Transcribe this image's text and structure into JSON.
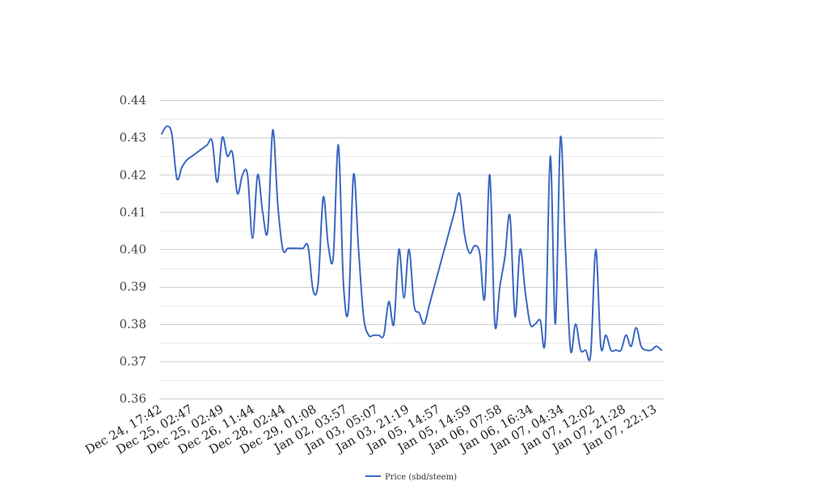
{
  "chart_data": {
    "type": "line",
    "title": "",
    "xlabel": "",
    "ylabel": "",
    "ylim": [
      0.36,
      0.44
    ],
    "y_ticks": [
      "0.36",
      "0.37",
      "0.38",
      "0.39",
      "0.40",
      "0.41",
      "0.42",
      "0.43",
      "0.44"
    ],
    "x_tick_labels": [
      "Dec 24, 17:42",
      "Dec 25, 02:47",
      "Dec 25, 02:49",
      "Dec 26, 11:44",
      "Dec 28, 02:44",
      "Dec 29, 01:08",
      "Jan 02, 03:57",
      "Jan 03, 05:07",
      "Jan 03, 21:19",
      "Jan 05, 14:57",
      "Jan 05, 14:59",
      "Jan 06, 07:58",
      "Jan 06, 16:34",
      "Jan 07, 04:34",
      "Jan 07, 12:02",
      "Jan 07, 21:28",
      "Jan 07, 22:13"
    ],
    "grid": true,
    "legend_position": "bottom-center",
    "series": [
      {
        "name": "Price (sbd/steem)",
        "color": "#3b68c2",
        "values": [
          0.431,
          0.433,
          0.431,
          0.419,
          0.422,
          0.424,
          0.425,
          0.426,
          0.427,
          0.428,
          0.429,
          0.418,
          0.43,
          0.425,
          0.426,
          0.415,
          0.42,
          0.42,
          0.403,
          0.42,
          0.41,
          0.405,
          0.432,
          0.412,
          0.4,
          0.4003,
          0.4003,
          0.4003,
          0.4003,
          0.4008,
          0.389,
          0.391,
          0.414,
          0.401,
          0.398,
          0.428,
          0.391,
          0.384,
          0.42,
          0.4,
          0.382,
          0.377,
          0.377,
          0.377,
          0.377,
          0.386,
          0.38,
          0.4,
          0.387,
          0.4,
          0.385,
          0.383,
          0.38,
          0.385,
          0.39,
          0.395,
          0.4,
          0.405,
          0.41,
          0.415,
          0.404,
          0.399,
          0.401,
          0.399,
          0.387,
          0.42,
          0.38,
          0.39,
          0.398,
          0.409,
          0.382,
          0.4,
          0.389,
          0.38,
          0.38,
          0.381,
          0.376,
          0.425,
          0.38,
          0.43,
          0.4,
          0.373,
          0.38,
          0.373,
          0.373,
          0.372,
          0.4,
          0.374,
          0.377,
          0.373,
          0.373,
          0.373,
          0.377,
          0.374,
          0.379,
          0.374,
          0.373,
          0.373,
          0.374,
          0.373
        ]
      }
    ]
  }
}
